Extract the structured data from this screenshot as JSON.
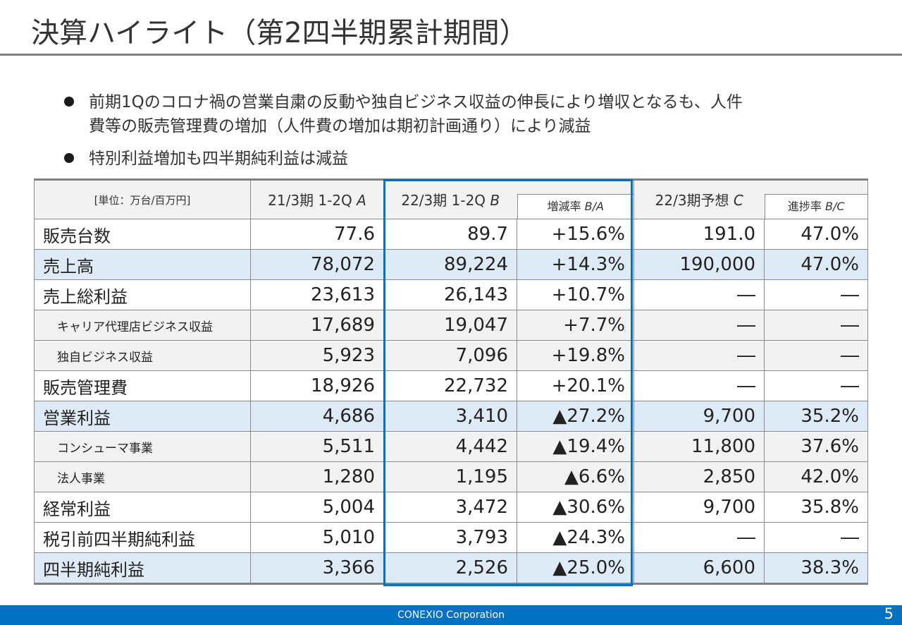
{
  "title": "決算ハイライト（第2四半期累計期間）",
  "bullets": [
    {
      "lines": [
        "前期1Qのコロナ禍の営業自粛の反動や独自ビジネス収益の伸長により増収となるも、人件",
        "費等の販売管理費の増加（人件費の増加は期初計画通り）により減益"
      ]
    },
    {
      "lines": [
        "特別利益増加も四半期純利益は減益"
      ]
    }
  ],
  "table": {
    "unit": "[単位：万台/百万円]",
    "headers": {
      "a": "21/3期 1-2Q",
      "a_mark": "A",
      "b": "22/3期 1-2Q",
      "b_mark": "B",
      "ba": "増減率",
      "ba_mark": "B/A",
      "c": "22/3期予想",
      "c_mark": "C",
      "bc": "進捗率",
      "bc_mark": "B/C"
    },
    "rows": [
      {
        "label": "販売台数",
        "a": "77.6",
        "b": "89.7",
        "ba": "+15.6%",
        "c": "191.0",
        "bc": "47.0%"
      },
      {
        "label": "売上高",
        "a": "78,072",
        "b": "89,224",
        "ba": "+14.3%",
        "c": "190,000",
        "bc": "47.0%"
      },
      {
        "label": "売上総利益",
        "a": "23,613",
        "b": "26,143",
        "ba": "+10.7%",
        "c": "―",
        "bc": "―"
      },
      {
        "label": "キャリア代理店ビジネス収益",
        "a": "17,689",
        "b": "19,047",
        "ba": "+7.7%",
        "c": "―",
        "bc": "―"
      },
      {
        "label": "独自ビジネス収益",
        "a": "5,923",
        "b": "7,096",
        "ba": "+19.8%",
        "c": "―",
        "bc": "―"
      },
      {
        "label": "販売管理費",
        "a": "18,926",
        "b": "22,732",
        "ba": "+20.1%",
        "c": "―",
        "bc": "―"
      },
      {
        "label": "営業利益",
        "a": "4,686",
        "b": "3,410",
        "ba": "▲27.2%",
        "c": "9,700",
        "bc": "35.2%"
      },
      {
        "label": "コンシューマ事業",
        "a": "5,511",
        "b": "4,442",
        "ba": "▲19.4%",
        "c": "11,800",
        "bc": "37.6%"
      },
      {
        "label": "法人事業",
        "a": "1,280",
        "b": "1,195",
        "ba": "▲6.6%",
        "c": "2,850",
        "bc": "42.0%"
      },
      {
        "label": "経常利益",
        "a": "5,004",
        "b": "3,472",
        "ba": "▲30.6%",
        "c": "9,700",
        "bc": "35.8%"
      },
      {
        "label": "税引前四半期純利益",
        "a": "5,010",
        "b": "3,793",
        "ba": "▲24.3%",
        "c": "―",
        "bc": "―"
      },
      {
        "label": "四半期純利益",
        "a": "3,366",
        "b": "2,526",
        "ba": "▲25.0%",
        "c": "6,600",
        "bc": "38.3%"
      }
    ]
  },
  "footer": {
    "company": "CONEXIO Corporation",
    "page": "5"
  },
  "colors": {
    "accent_blue": "#0070c0",
    "highlight_row": "#deebf7",
    "gray_row": "#f2f2f2",
    "frame_blue": "#0b6fbf"
  }
}
